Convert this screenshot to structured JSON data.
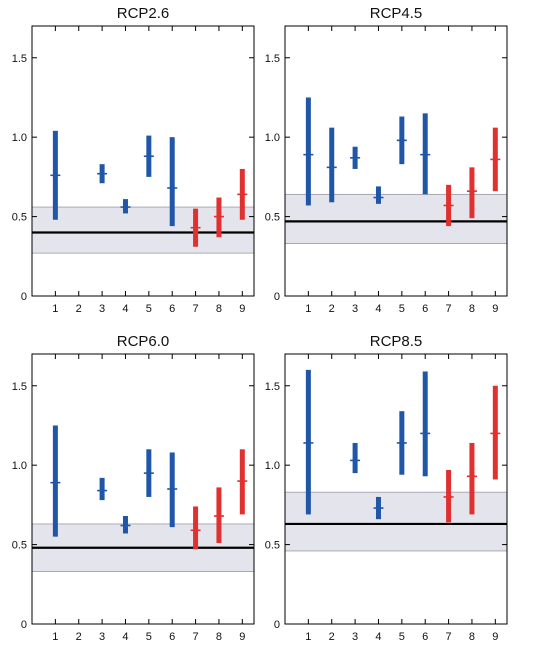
{
  "chart_data": [
    {
      "type": "range",
      "title": "RCP2.6",
      "ylim": [
        0,
        1.7
      ],
      "yticks": [
        "0",
        "0.5",
        "1.0",
        "1.5"
      ],
      "categories": [
        "1",
        "2",
        "3",
        "4",
        "5",
        "6",
        "7",
        "8",
        "9"
      ],
      "reference": {
        "value": 0.4,
        "band": [
          0.27,
          0.56
        ]
      },
      "series": [
        {
          "x": "1",
          "low": 0.48,
          "high": 1.04,
          "mid": 0.76,
          "color": "#1f56a8"
        },
        {
          "x": "3",
          "low": 0.71,
          "high": 0.83,
          "mid": 0.77,
          "color": "#1f56a8"
        },
        {
          "x": "4",
          "low": 0.52,
          "high": 0.61,
          "mid": 0.56,
          "color": "#1f56a8"
        },
        {
          "x": "5",
          "low": 0.75,
          "high": 1.01,
          "mid": 0.88,
          "color": "#1f56a8"
        },
        {
          "x": "6",
          "low": 0.44,
          "high": 1.0,
          "mid": 0.68,
          "color": "#1f56a8"
        },
        {
          "x": "7",
          "low": 0.31,
          "high": 0.55,
          "mid": 0.43,
          "color": "#e03030"
        },
        {
          "x": "8",
          "low": 0.37,
          "high": 0.62,
          "mid": 0.5,
          "color": "#e03030"
        },
        {
          "x": "9",
          "low": 0.48,
          "high": 0.8,
          "mid": 0.64,
          "color": "#e03030"
        }
      ]
    },
    {
      "type": "range",
      "title": "RCP4.5",
      "ylim": [
        0,
        1.7
      ],
      "yticks": [
        "0",
        "0.5",
        "1.0",
        "1.5"
      ],
      "categories": [
        "1",
        "2",
        "3",
        "4",
        "5",
        "6",
        "7",
        "8",
        "9"
      ],
      "reference": {
        "value": 0.47,
        "band": [
          0.33,
          0.64
        ]
      },
      "series": [
        {
          "x": "1",
          "low": 0.57,
          "high": 1.25,
          "mid": 0.89,
          "color": "#1f56a8"
        },
        {
          "x": "2",
          "low": 0.59,
          "high": 1.06,
          "mid": 0.81,
          "color": "#1f56a8"
        },
        {
          "x": "3",
          "low": 0.8,
          "high": 0.94,
          "mid": 0.87,
          "color": "#1f56a8"
        },
        {
          "x": "4",
          "low": 0.58,
          "high": 0.69,
          "mid": 0.62,
          "color": "#1f56a8"
        },
        {
          "x": "5",
          "low": 0.83,
          "high": 1.13,
          "mid": 0.98,
          "color": "#1f56a8"
        },
        {
          "x": "6",
          "low": 0.64,
          "high": 1.15,
          "mid": 0.89,
          "color": "#1f56a8"
        },
        {
          "x": "7",
          "low": 0.44,
          "high": 0.7,
          "mid": 0.57,
          "color": "#e03030"
        },
        {
          "x": "8",
          "low": 0.49,
          "high": 0.81,
          "mid": 0.66,
          "color": "#e03030"
        },
        {
          "x": "9",
          "low": 0.66,
          "high": 1.06,
          "mid": 0.86,
          "color": "#e03030"
        }
      ]
    },
    {
      "type": "range",
      "title": "RCP6.0",
      "ylim": [
        0,
        1.7
      ],
      "yticks": [
        "0",
        "0.5",
        "1.0",
        "1.5"
      ],
      "categories": [
        "1",
        "2",
        "3",
        "4",
        "5",
        "6",
        "7",
        "8",
        "9"
      ],
      "reference": {
        "value": 0.48,
        "band": [
          0.33,
          0.63
        ]
      },
      "series": [
        {
          "x": "1",
          "low": 0.55,
          "high": 1.25,
          "mid": 0.89,
          "color": "#1f56a8"
        },
        {
          "x": "3",
          "low": 0.78,
          "high": 0.92,
          "mid": 0.84,
          "color": "#1f56a8"
        },
        {
          "x": "4",
          "low": 0.57,
          "high": 0.68,
          "mid": 0.62,
          "color": "#1f56a8"
        },
        {
          "x": "5",
          "low": 0.8,
          "high": 1.1,
          "mid": 0.95,
          "color": "#1f56a8"
        },
        {
          "x": "6",
          "low": 0.61,
          "high": 1.08,
          "mid": 0.85,
          "color": "#1f56a8"
        },
        {
          "x": "7",
          "low": 0.47,
          "high": 0.74,
          "mid": 0.59,
          "color": "#e03030"
        },
        {
          "x": "8",
          "low": 0.51,
          "high": 0.86,
          "mid": 0.68,
          "color": "#e03030"
        },
        {
          "x": "9",
          "low": 0.69,
          "high": 1.1,
          "mid": 0.9,
          "color": "#e03030"
        }
      ]
    },
    {
      "type": "range",
      "title": "RCP8.5",
      "ylim": [
        0,
        1.7
      ],
      "yticks": [
        "0",
        "0.5",
        "1.0",
        "1.5"
      ],
      "categories": [
        "1",
        "2",
        "3",
        "4",
        "5",
        "6",
        "7",
        "8",
        "9"
      ],
      "reference": {
        "value": 0.63,
        "band": [
          0.46,
          0.83
        ]
      },
      "series": [
        {
          "x": "1",
          "low": 0.69,
          "high": 1.6,
          "mid": 1.14,
          "color": "#1f56a8"
        },
        {
          "x": "3",
          "low": 0.95,
          "high": 1.14,
          "mid": 1.03,
          "color": "#1f56a8"
        },
        {
          "x": "4",
          "low": 0.66,
          "high": 0.8,
          "mid": 0.73,
          "color": "#1f56a8"
        },
        {
          "x": "5",
          "low": 0.94,
          "high": 1.34,
          "mid": 1.14,
          "color": "#1f56a8"
        },
        {
          "x": "6",
          "low": 0.93,
          "high": 1.59,
          "mid": 1.2,
          "color": "#1f56a8"
        },
        {
          "x": "7",
          "low": 0.64,
          "high": 0.97,
          "mid": 0.8,
          "color": "#e03030"
        },
        {
          "x": "8",
          "low": 0.69,
          "high": 1.14,
          "mid": 0.93,
          "color": "#e03030"
        },
        {
          "x": "9",
          "low": 0.91,
          "high": 1.5,
          "mid": 1.2,
          "color": "#e03030"
        }
      ]
    }
  ]
}
